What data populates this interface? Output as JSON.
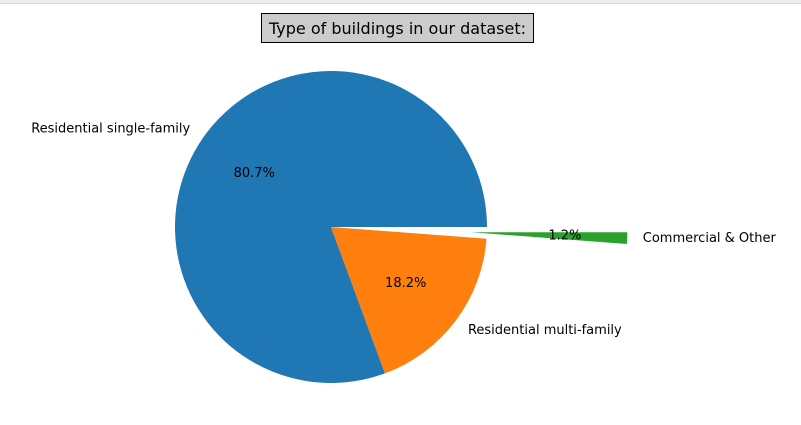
{
  "chart_data": {
    "type": "pie",
    "title": "Type of buildings in our dataset:",
    "slices": [
      {
        "label": "Residential single-family",
        "value": 80.7,
        "pct_label": "80.7%",
        "color": "#1f77b4",
        "exploded": false
      },
      {
        "label": "Residential multi-family",
        "value": 18.2,
        "pct_label": "18.2%",
        "color": "#ff7f0e",
        "exploded": false
      },
      {
        "label": "Commercial & Other",
        "value": 1.2,
        "pct_label": "1.2%",
        "color": "#2ca02c",
        "exploded": true
      }
    ],
    "start_angle_deg": 0,
    "direction": "counterclockwise",
    "legend": "none"
  }
}
